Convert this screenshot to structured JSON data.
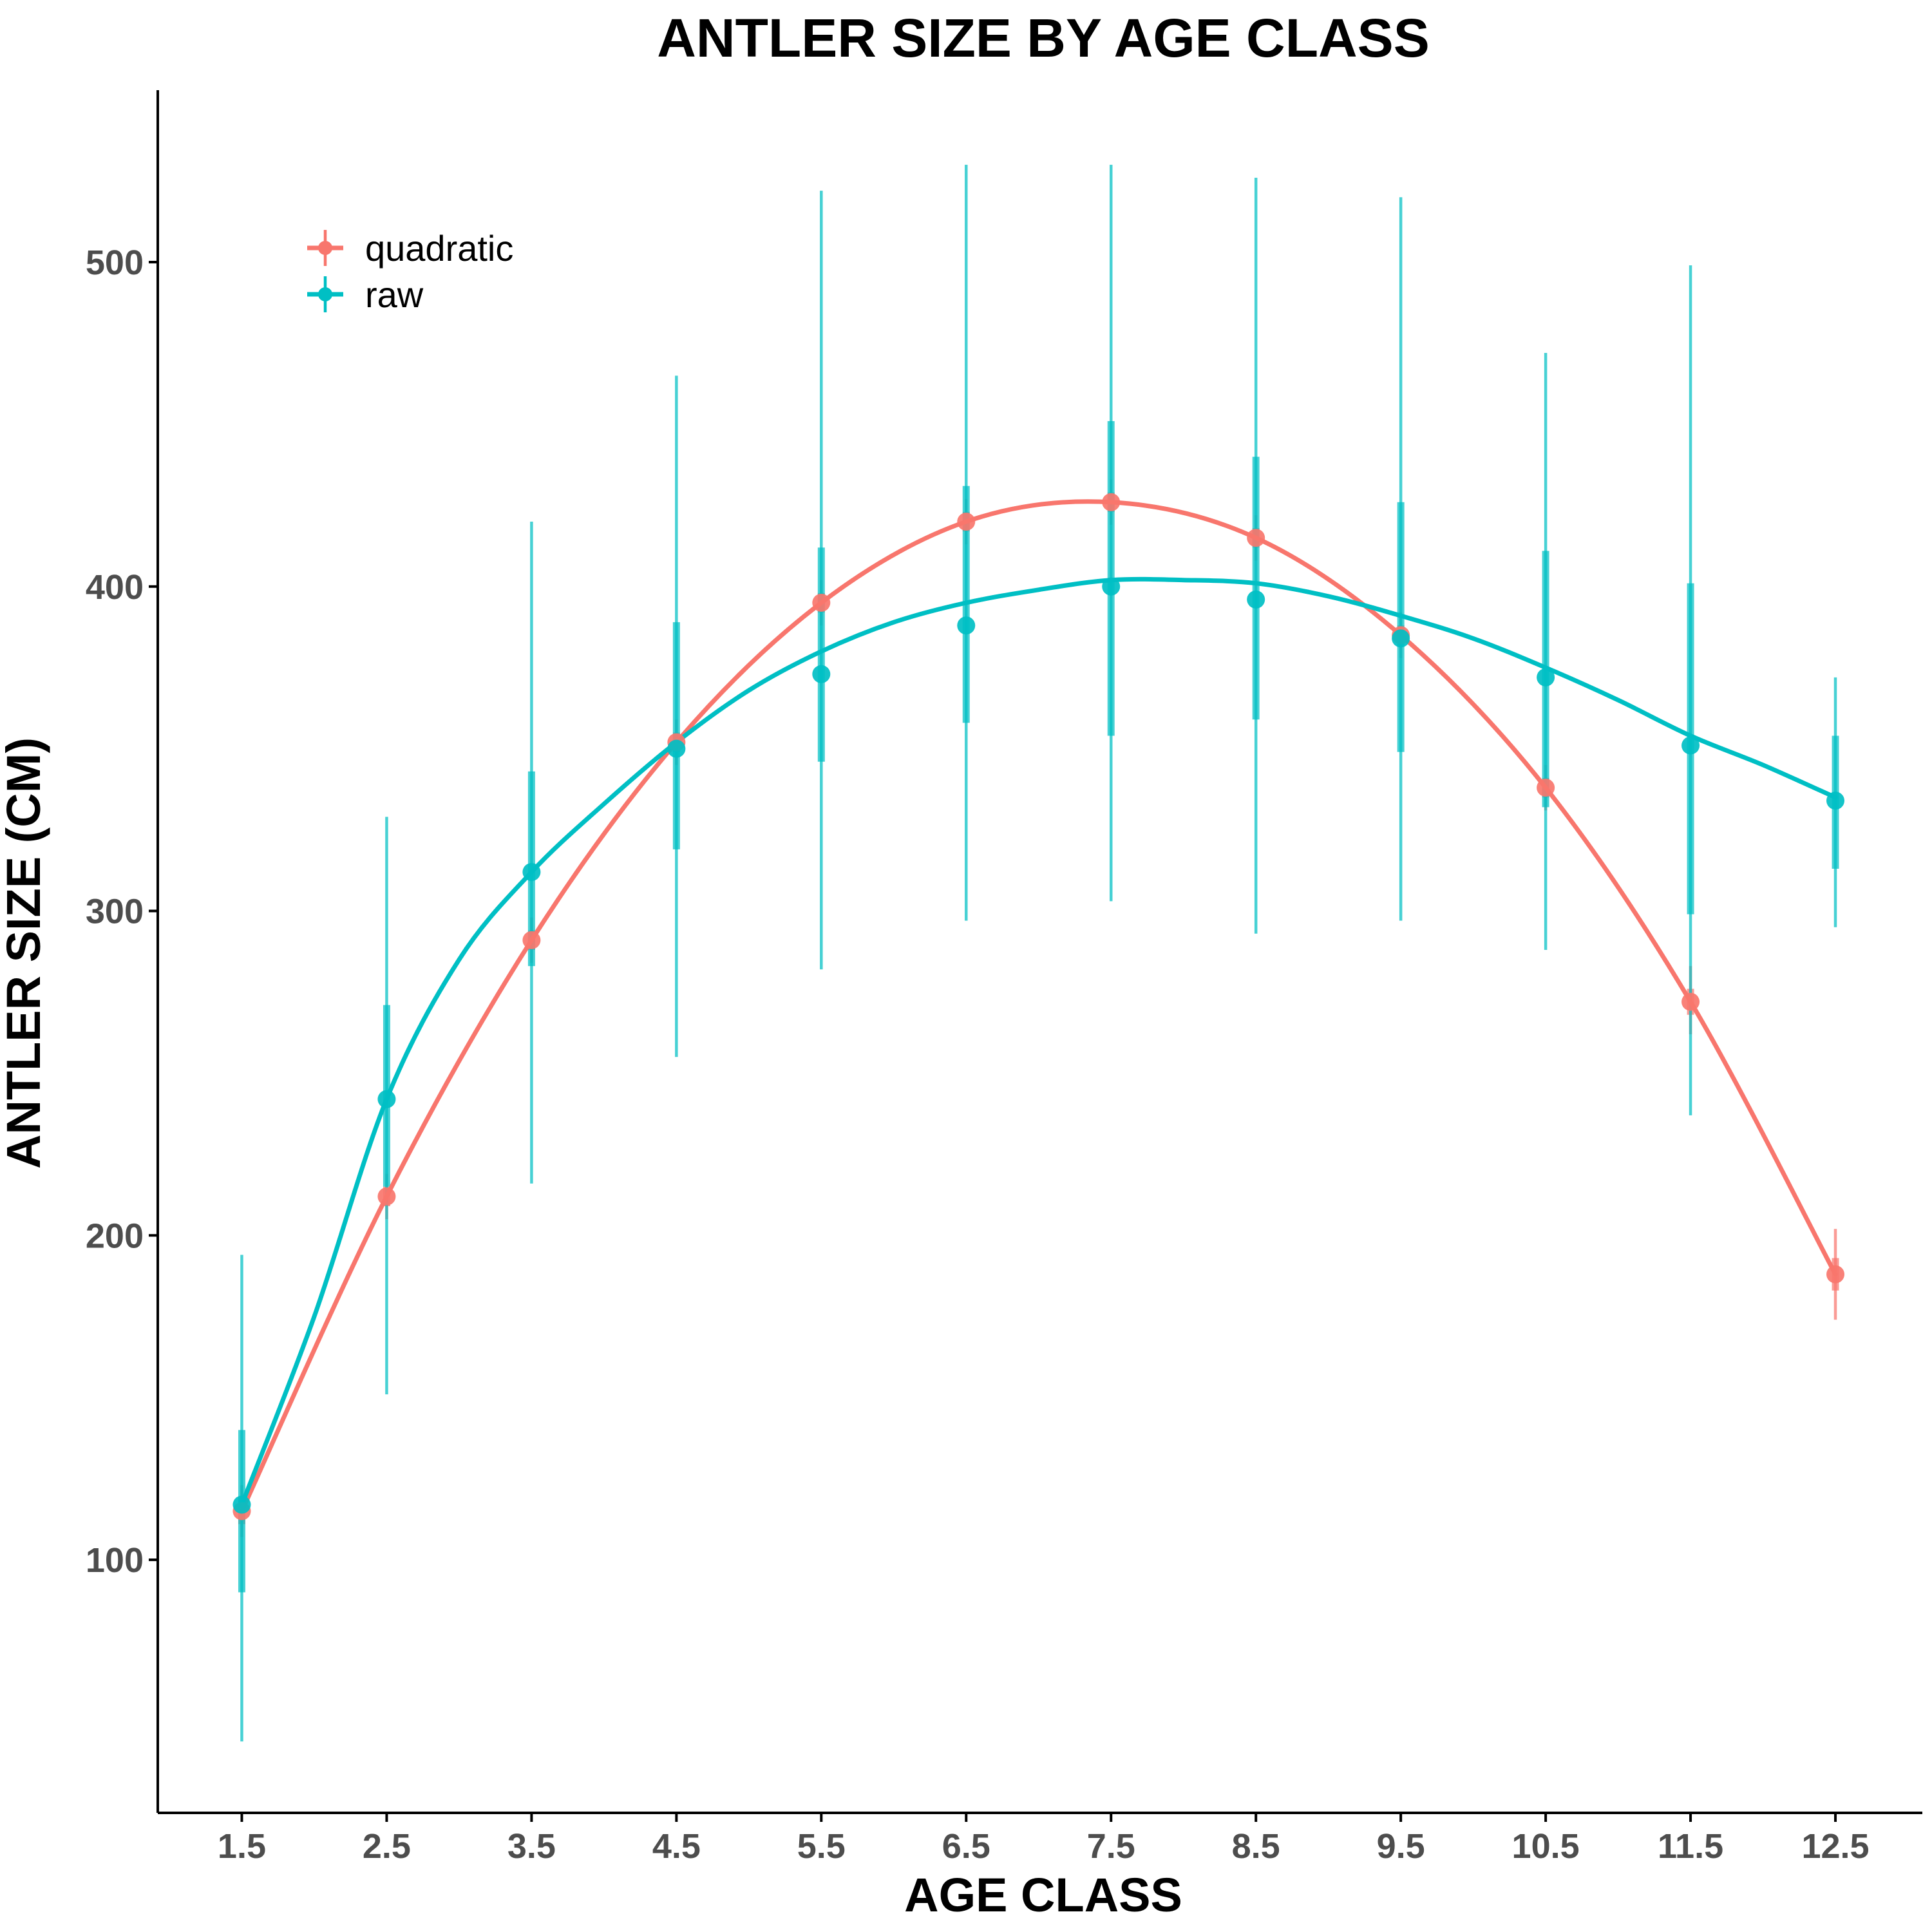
{
  "chart_data": {
    "type": "line",
    "title": "ANTLER SIZE BY AGE CLASS",
    "xlabel": "AGE CLASS",
    "ylabel": "ANTLER SIZE (CM)",
    "x_categories": [
      "1.5",
      "2.5",
      "3.5",
      "4.5",
      "5.5",
      "6.5",
      "7.5",
      "8.5",
      "9.5",
      "10.5",
      "11.5",
      "12.5"
    ],
    "x": [
      1.5,
      2.5,
      3.5,
      4.5,
      5.5,
      6.5,
      7.5,
      8.5,
      9.5,
      10.5,
      11.5,
      12.5
    ],
    "xlim": [
      0.92,
      13.1
    ],
    "ylim": [
      22,
      553
    ],
    "yticks": [
      100,
      200,
      300,
      400,
      500
    ],
    "ytick_labels": [
      "100",
      "200",
      "300",
      "400",
      "500"
    ],
    "grid": false,
    "legend_position": "top-left",
    "series": [
      {
        "name": "quadratic",
        "color": "#F8766D",
        "y": [
          115,
          212,
          291,
          352,
          395,
          420,
          426,
          415,
          385,
          338,
          272,
          188
        ],
        "inner_interval": [
          [
            111,
            119
          ],
          [
            209,
            215
          ],
          [
            288,
            294
          ],
          [
            349,
            355
          ],
          [
            392,
            398
          ],
          [
            417,
            423
          ],
          [
            423,
            429
          ],
          [
            412,
            418
          ],
          [
            382,
            388
          ],
          [
            335,
            341
          ],
          [
            268,
            276
          ],
          [
            183,
            193
          ]
        ],
        "outer_interval": [
          [
            107,
            123
          ],
          [
            205,
            219
          ],
          [
            284,
            298
          ],
          [
            345,
            359
          ],
          [
            388,
            402
          ],
          [
            413,
            427
          ],
          [
            419,
            433
          ],
          [
            408,
            422
          ],
          [
            378,
            392
          ],
          [
            331,
            345
          ],
          [
            262,
            283
          ],
          [
            174,
            202
          ]
        ]
      },
      {
        "name": "raw",
        "color": "#00BFC4",
        "y": [
          117,
          242,
          312,
          350,
          373,
          388,
          400,
          396,
          384,
          372,
          351,
          334
        ],
        "inner_interval": [
          [
            90,
            140
          ],
          [
            215,
            271
          ],
          [
            283,
            343
          ],
          [
            319,
            389
          ],
          [
            346,
            412
          ],
          [
            358,
            431
          ],
          [
            354,
            451
          ],
          [
            359,
            440
          ],
          [
            349,
            426
          ],
          [
            332,
            411
          ],
          [
            299,
            401
          ],
          [
            313,
            354
          ]
        ],
        "outer_interval": [
          [
            44,
            194
          ],
          [
            151,
            329
          ],
          [
            216,
            420
          ],
          [
            255,
            465
          ],
          [
            282,
            522
          ],
          [
            297,
            530
          ],
          [
            303,
            530
          ],
          [
            293,
            526
          ],
          [
            297,
            520
          ],
          [
            288,
            472
          ],
          [
            237,
            499
          ],
          [
            295,
            372
          ]
        ],
        "smooth_curve": [
          [
            1.5,
            117
          ],
          [
            2.0,
            175
          ],
          [
            2.5,
            242
          ],
          [
            3.0,
            285
          ],
          [
            3.5,
            312
          ],
          [
            4.0,
            333
          ],
          [
            4.5,
            352
          ],
          [
            5.0,
            368
          ],
          [
            5.5,
            380
          ],
          [
            6.0,
            389
          ],
          [
            6.5,
            395
          ],
          [
            7.0,
            399
          ],
          [
            7.5,
            402
          ],
          [
            8.0,
            402
          ],
          [
            8.5,
            401
          ],
          [
            9.0,
            397
          ],
          [
            9.5,
            391
          ],
          [
            10.0,
            384
          ],
          [
            10.5,
            375
          ],
          [
            11.0,
            365
          ],
          [
            11.5,
            354
          ],
          [
            12.0,
            345
          ],
          [
            12.5,
            335
          ]
        ]
      }
    ]
  }
}
